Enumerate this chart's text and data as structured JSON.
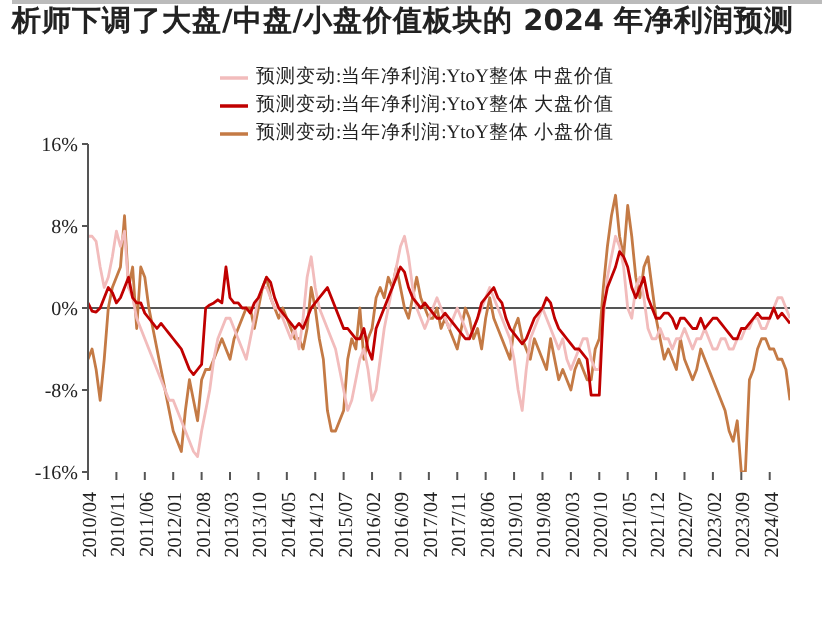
{
  "chart_data": {
    "type": "line",
    "title": "析师下调了大盘/中盘/小盘价值板块的 2024 年净利润预测",
    "categories": [
      "2010/04",
      null,
      null,
      null,
      null,
      null,
      null,
      "2010/11",
      null,
      null,
      null,
      null,
      null,
      null,
      "2011/06",
      null,
      null,
      null,
      null,
      null,
      null,
      "2012/01",
      null,
      null,
      null,
      null,
      null,
      null,
      "2012/08",
      null,
      null,
      null,
      null,
      null,
      null,
      "2013/03",
      null,
      null,
      null,
      null,
      null,
      null,
      "2013/10",
      null,
      null,
      null,
      null,
      null,
      null,
      "2014/05",
      null,
      null,
      null,
      null,
      null,
      null,
      "2014/12",
      null,
      null,
      null,
      null,
      null,
      null,
      "2015/07",
      null,
      null,
      null,
      null,
      null,
      null,
      "2016/02",
      null,
      null,
      null,
      null,
      null,
      null,
      "2016/09",
      null,
      null,
      null,
      null,
      null,
      null,
      "2017/04",
      null,
      null,
      null,
      null,
      null,
      null,
      "2017/11",
      null,
      null,
      null,
      null,
      null,
      null,
      "2018/06",
      null,
      null,
      null,
      null,
      null,
      null,
      "2019/01",
      null,
      null,
      null,
      null,
      null,
      null,
      "2019/08",
      null,
      null,
      null,
      null,
      null,
      null,
      "2020/03",
      null,
      null,
      null,
      null,
      null,
      null,
      "2020/10",
      null,
      null,
      null,
      null,
      null,
      null,
      "2021/05",
      null,
      null,
      null,
      null,
      null,
      null,
      "2021/12",
      null,
      null,
      null,
      null,
      null,
      null,
      "2022/07",
      null,
      null,
      null,
      null,
      null,
      null,
      "2023/02",
      null,
      null,
      null,
      null,
      null,
      null,
      "2023/09",
      null,
      null,
      null,
      null,
      null,
      null,
      "2024/04",
      null,
      null,
      null,
      null,
      null
    ],
    "series": [
      {
        "name": "预测变动:当年净利润:YtoY整体 大盘价值",
        "color": "#c00000",
        "values": [
          0.5,
          -0.3,
          -0.4,
          0,
          1,
          2,
          1.5,
          0.5,
          1,
          2,
          3,
          1,
          0.5,
          0.5,
          -0.5,
          -1,
          -1.5,
          -2,
          -1.5,
          -2,
          -2.5,
          -3,
          -3.5,
          -4,
          -5,
          -6,
          -6.5,
          -6,
          -5.5,
          0,
          0.3,
          0.5,
          0.8,
          0.5,
          4,
          1,
          0.5,
          0.5,
          0,
          0,
          -0.5,
          0.5,
          1,
          2,
          3,
          2.5,
          1,
          0,
          -0.5,
          -1,
          -1.5,
          -2,
          -1.5,
          -2,
          -1,
          0,
          0.5,
          1,
          1.5,
          2,
          1,
          0,
          -1,
          -2,
          -2,
          -2.5,
          -3,
          -3,
          -2,
          -4,
          -5,
          -2,
          -1,
          0,
          1,
          2,
          3,
          4,
          3.5,
          2,
          1,
          0.5,
          0,
          0.5,
          0,
          -0.5,
          -1,
          -1,
          -0.5,
          -1,
          -1.5,
          -2,
          -2.5,
          -3,
          -3,
          -2,
          -1,
          0.5,
          1,
          1.5,
          2,
          1,
          0.5,
          -1,
          -2,
          -2.5,
          -3,
          -3.5,
          -3,
          -2,
          -1,
          -0.5,
          0,
          1,
          0.5,
          -1,
          -2,
          -2.5,
          -3,
          -3.5,
          -4,
          -4,
          -4.5,
          -5,
          -8.5,
          -8.5,
          -8.5,
          0,
          2,
          3,
          4,
          5.5,
          5,
          4,
          2,
          1,
          2,
          3,
          1,
          0,
          -1,
          -1,
          -0.5,
          -0.5,
          -1,
          -2,
          -1,
          -1,
          -1.5,
          -2,
          -2,
          -1,
          -2,
          -1.5,
          -1,
          -1,
          -1.5,
          -2,
          -2.5,
          -3,
          -3,
          -2,
          -2,
          -1.5,
          -1,
          -0.5,
          -1,
          -1,
          -1,
          0,
          -1,
          -0.5,
          -1,
          -1.5
        ]
      },
      {
        "name": "预测变动:当年净利润:YtoY整体 中盘价值",
        "color": "#f2bcbc",
        "values": [
          7,
          7,
          6.5,
          4,
          2,
          3,
          5,
          7.5,
          6,
          7.5,
          2,
          1,
          -1,
          -2,
          -3,
          -4,
          -5,
          -6,
          -7,
          -8,
          -9,
          -9,
          -10,
          -11,
          -12,
          -13,
          -14,
          -14.5,
          -12,
          -10,
          -8,
          -5,
          -3,
          -2,
          -1,
          -1,
          -2,
          -3,
          -4,
          -5,
          -3,
          -1,
          1,
          2,
          2,
          1,
          0,
          0,
          -1,
          -2,
          -3,
          -2,
          -4,
          -1,
          3,
          5,
          2,
          0,
          -1,
          -2,
          -3,
          -4,
          -6,
          -8,
          -10,
          -9,
          -7,
          -5,
          -4,
          -6,
          -9,
          -8,
          -5,
          -2,
          0,
          2,
          4,
          6,
          7,
          5,
          2,
          0,
          -1,
          -2,
          -1,
          0,
          1,
          0,
          -1,
          -2,
          -1,
          0,
          -1,
          -2,
          -3,
          -2,
          -1,
          0,
          1,
          2,
          1,
          0,
          -1,
          -2,
          -3,
          -5,
          -8,
          -10,
          -6,
          -3,
          -2,
          -1,
          0,
          -1,
          -2,
          -3,
          -4,
          -3,
          -5,
          -6,
          -5,
          -4,
          -3,
          -3,
          -5,
          -6,
          -6,
          -1,
          3,
          5,
          7,
          6,
          4,
          0,
          -1,
          2,
          3,
          1,
          -2,
          -3,
          -3,
          -2,
          -3,
          -3,
          -4,
          -3,
          -3,
          -2,
          -3,
          -4,
          -3,
          -3,
          -2,
          -3,
          -4,
          -4,
          -3,
          -3,
          -4,
          -4,
          -3,
          -3,
          -2,
          -2,
          -1,
          -1,
          -2,
          -2,
          -1,
          0,
          1,
          1,
          0,
          -1
        ]
      },
      {
        "name": "预测变动:当年净利润:YtoY整体 小盘价值",
        "color": "#c47a45",
        "values": [
          -5,
          -4,
          -6,
          -9,
          -5,
          0,
          2,
          3,
          4,
          9,
          2,
          4,
          -2,
          4,
          3,
          0,
          -2,
          -4,
          -6,
          -8,
          -10,
          -12,
          -13,
          -14,
          -10,
          -7,
          -9,
          -11,
          -7,
          -6,
          -6,
          -5,
          -4,
          -3,
          -4,
          -5,
          -3,
          -2,
          -1,
          0,
          0,
          -2,
          0,
          2,
          3,
          1,
          0,
          -1,
          0,
          -1,
          -2,
          -3,
          -3,
          -4,
          -2,
          2,
          0,
          -3,
          -5,
          -10,
          -12,
          -12,
          -11,
          -10,
          -5,
          -3,
          -4,
          0,
          -5,
          -3,
          -2,
          1,
          2,
          1,
          3,
          2,
          4,
          2,
          0,
          -1,
          1,
          3,
          1,
          0,
          -1,
          -1,
          0,
          -2,
          -1,
          -2,
          -3,
          -4,
          -2,
          0,
          -1,
          -3,
          -2,
          -4,
          -1,
          1,
          -1,
          -2,
          -3,
          -4,
          -5,
          -2,
          -1,
          -3,
          -4,
          -5,
          -3,
          -4,
          -5,
          -6,
          -3,
          -5,
          -7,
          -6,
          -7,
          -8,
          -6,
          -5,
          -6,
          -7,
          -7,
          -4,
          -3,
          2,
          6,
          9,
          11,
          7,
          5,
          10,
          7,
          3,
          1,
          4,
          5,
          2,
          -1,
          -3,
          -5,
          -4,
          -5,
          -6,
          -3,
          -5,
          -6,
          -7,
          -6,
          -4,
          -5,
          -6,
          -7,
          -8,
          -9,
          -10,
          -12,
          -13,
          -11,
          -16,
          -16,
          -7,
          -6,
          -4,
          -3,
          -3,
          -4,
          -4,
          -5,
          -5,
          -6,
          -9
        ]
      }
    ],
    "ylim": [
      -16,
      16
    ],
    "yticks": [
      {
        "value": -16,
        "label": "-16%"
      },
      {
        "value": -8,
        "label": "-8%"
      },
      {
        "value": 0,
        "label": "0%"
      },
      {
        "value": 8,
        "label": "8%"
      },
      {
        "value": 16,
        "label": "16%"
      }
    ],
    "ref_lines": [
      {
        "axis": "y",
        "value": 0
      }
    ],
    "legend": "top",
    "grid": false,
    "marker": "none",
    "line_style": "solid"
  }
}
